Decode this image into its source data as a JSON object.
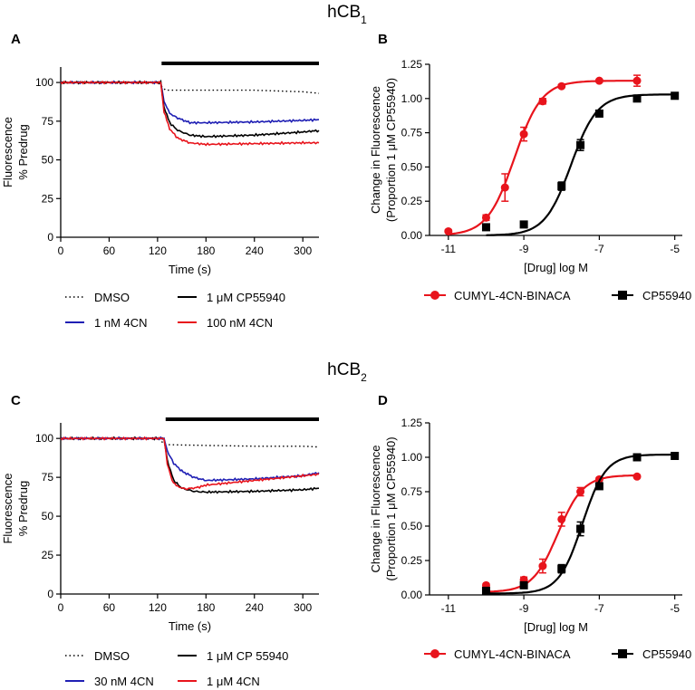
{
  "figure": {
    "rows": [
      {
        "title": "hCB",
        "title_sub": "1"
      },
      {
        "title": "hCB",
        "title_sub": "2"
      }
    ]
  },
  "colors": {
    "dmso": "#000000",
    "cp": "#000000",
    "blue": "#1f1fb4",
    "red": "#e8141c"
  },
  "chart_data": [
    {
      "panel": "A",
      "type": "line",
      "xlabel": "Time (s)",
      "ylabel": [
        "Fluorescence",
        "% Predrug"
      ],
      "xlim": [
        0,
        320
      ],
      "ylim": [
        0,
        110
      ],
      "xticks": [
        0,
        60,
        120,
        180,
        240,
        300
      ],
      "yticks": [
        0,
        25,
        50,
        75,
        100
      ],
      "drug_bar": [
        125,
        320
      ],
      "series": [
        {
          "key": "dmso",
          "name": "DMSO",
          "style": "dotted",
          "color": "#000000",
          "x": [
            0,
            60,
            120,
            130,
            180,
            240,
            300,
            320
          ],
          "y": [
            100,
            100,
            100,
            95,
            95,
            95,
            94,
            93
          ]
        },
        {
          "key": "blue",
          "name": "1 nM 4CN",
          "style": "solid",
          "color": "#1f1fb4",
          "x": [
            0,
            60,
            120,
            124,
            128,
            135,
            145,
            160,
            180,
            240,
            300,
            320
          ],
          "y": [
            100,
            100,
            100,
            100,
            88,
            80,
            77,
            74,
            74,
            74.5,
            75.5,
            76
          ]
        },
        {
          "key": "black",
          "name": "1 μM CP55940",
          "style": "solid",
          "color": "#000000",
          "x": [
            0,
            60,
            120,
            124,
            128,
            135,
            145,
            160,
            180,
            240,
            300,
            320
          ],
          "y": [
            100,
            100,
            100,
            100,
            84,
            74,
            69,
            66,
            65,
            66,
            68,
            69
          ]
        },
        {
          "key": "red",
          "name": "100 nM 4CN",
          "style": "solid",
          "color": "#e8141c",
          "x": [
            0,
            60,
            120,
            124,
            128,
            135,
            145,
            160,
            180,
            240,
            300,
            320
          ],
          "y": [
            100,
            100,
            100,
            100,
            81,
            70,
            64,
            61,
            60,
            60.5,
            61,
            61
          ]
        }
      ]
    },
    {
      "panel": "B",
      "type": "scatter",
      "xlabel": "[Drug] log M",
      "ylabel": [
        "Change in Fluorescence",
        "(Proportion 1 μM CP55940)"
      ],
      "xlim": [
        -11.5,
        -4.8
      ],
      "ylim": [
        0,
        1.25
      ],
      "xticks": [
        -11,
        -9,
        -7,
        -5
      ],
      "xtick_labels": [
        "-11",
        "-9",
        "-7",
        "-5"
      ],
      "yticks": [
        0,
        0.25,
        0.5,
        0.75,
        1.0,
        1.25
      ],
      "ytick_labels": [
        "0.00",
        "0.25",
        "0.50",
        "0.75",
        "1.00",
        "1.25"
      ],
      "series": [
        {
          "name": "CUMYL-4CN-BINACA",
          "marker": "circle",
          "color": "#e8141c",
          "x": [
            -11,
            -10,
            -9.5,
            -9,
            -8.5,
            -8,
            -7,
            -6
          ],
          "y": [
            0.03,
            0.13,
            0.35,
            0.74,
            0.98,
            1.09,
            1.13,
            1.13
          ],
          "err": [
            0.01,
            0.02,
            0.1,
            0.05,
            0.02,
            0.01,
            0.01,
            0.04
          ],
          "fit": {
            "bottom": 0.0,
            "top": 1.13,
            "logec50": -9.25,
            "hill": 1.2,
            "x_from": -11,
            "x_to": -6
          }
        },
        {
          "name": "CP55940",
          "marker": "square",
          "color": "#000000",
          "x": [
            -10,
            -9,
            -8,
            -7.5,
            -7,
            -6,
            -5
          ],
          "y": [
            0.06,
            0.08,
            0.36,
            0.66,
            0.89,
            1.0,
            1.02
          ],
          "err": [
            0.01,
            0.01,
            0.03,
            0.04,
            0.02,
            0.02,
            0.01
          ],
          "fit": {
            "bottom": 0.0,
            "top": 1.03,
            "logec50": -7.75,
            "hill": 1.25,
            "x_from": -10,
            "x_to": -5
          }
        }
      ]
    },
    {
      "panel": "C",
      "type": "line",
      "xlabel": "Time (s)",
      "ylabel": [
        "Fluorescence",
        "% Predrug"
      ],
      "xlim": [
        0,
        320
      ],
      "ylim": [
        0,
        110
      ],
      "xticks": [
        0,
        60,
        120,
        180,
        240,
        300
      ],
      "yticks": [
        0,
        25,
        50,
        75,
        100
      ],
      "drug_bar": [
        130,
        320
      ],
      "series": [
        {
          "key": "dmso",
          "name": "DMSO",
          "style": "dotted",
          "color": "#000000",
          "x": [
            0,
            60,
            120,
            130,
            180,
            240,
            300,
            320
          ],
          "y": [
            100,
            100,
            100,
            96,
            95.5,
            95,
            95,
            94.5
          ]
        },
        {
          "key": "black",
          "name": "1 μM CP 55940",
          "style": "solid",
          "color": "#000000",
          "x": [
            0,
            60,
            120,
            128,
            132,
            140,
            150,
            165,
            180,
            240,
            300,
            320
          ],
          "y": [
            100,
            100,
            100,
            100,
            86,
            73,
            68,
            66,
            65.5,
            66,
            67,
            68
          ]
        },
        {
          "key": "blue",
          "name": "30 nM 4CN",
          "style": "solid",
          "color": "#1f1fb4",
          "x": [
            0,
            60,
            120,
            128,
            132,
            140,
            150,
            165,
            180,
            240,
            300,
            320
          ],
          "y": [
            100,
            100,
            100,
            100,
            92,
            84,
            79,
            75,
            73,
            74,
            76,
            78
          ]
        },
        {
          "key": "red",
          "name": "1 μM 4CN",
          "style": "solid",
          "color": "#e8141c",
          "x": [
            0,
            60,
            120,
            128,
            132,
            138,
            145,
            155,
            170,
            180,
            240,
            300,
            320
          ],
          "y": [
            100,
            100,
            100,
            100,
            84,
            73,
            69,
            67.5,
            68.5,
            70,
            73,
            76,
            77
          ]
        }
      ]
    },
    {
      "panel": "D",
      "type": "scatter",
      "xlabel": "[Drug] log M",
      "ylabel": [
        "Change in Fluorescence",
        "(Proportion 1 μM CP55940)"
      ],
      "xlim": [
        -11.5,
        -4.8
      ],
      "ylim": [
        0,
        1.25
      ],
      "xticks": [
        -11,
        -9,
        -7,
        -5
      ],
      "xtick_labels": [
        "-11",
        "-9",
        "-7",
        "-5"
      ],
      "yticks": [
        0,
        0.25,
        0.5,
        0.75,
        1.0,
        1.25
      ],
      "ytick_labels": [
        "0.00",
        "0.25",
        "0.50",
        "0.75",
        "1.00",
        "1.25"
      ],
      "series": [
        {
          "name": "CUMYL-4CN-BINACA",
          "marker": "circle",
          "color": "#e8141c",
          "x": [
            -10,
            -9,
            -8.5,
            -8,
            -7.5,
            -7,
            -6
          ],
          "y": [
            0.07,
            0.11,
            0.21,
            0.55,
            0.75,
            0.84,
            0.86
          ],
          "err": [
            0.01,
            0.02,
            0.05,
            0.05,
            0.03,
            0.01,
            0.01
          ],
          "fit": {
            "bottom": 0.02,
            "top": 0.87,
            "logec50": -8.1,
            "hill": 1.3,
            "x_from": -10,
            "x_to": -6
          }
        },
        {
          "name": "CP55940",
          "marker": "square",
          "color": "#000000",
          "x": [
            -10,
            -9,
            -8,
            -7.5,
            -7,
            -6,
            -5
          ],
          "y": [
            0.03,
            0.07,
            0.19,
            0.48,
            0.79,
            1.0,
            1.01
          ],
          "err": [
            0.01,
            0.01,
            0.03,
            0.05,
            0.02,
            0.01,
            0.01
          ],
          "fit": {
            "bottom": 0.01,
            "top": 1.02,
            "logec50": -7.45,
            "hill": 1.4,
            "x_from": -10,
            "x_to": -5
          }
        }
      ]
    }
  ]
}
